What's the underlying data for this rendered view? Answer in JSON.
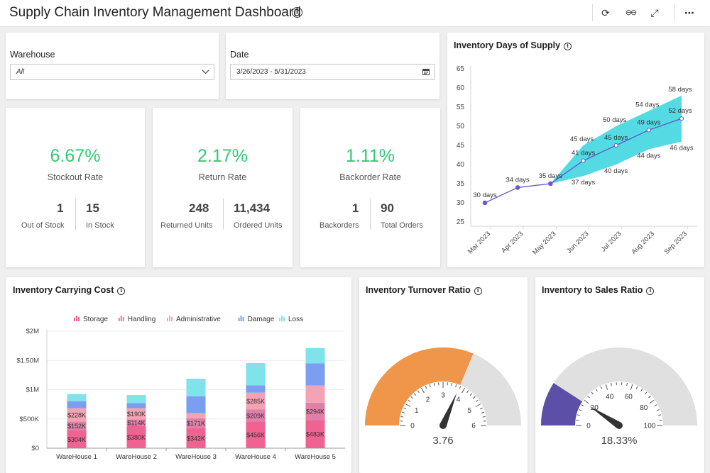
{
  "header": {
    "title": "Supply Chain Inventory Management Dashboard",
    "info_glyph": "i",
    "refresh_glyph": "⟳",
    "glasses_glyph": "⊖⊖",
    "expand_glyph": "⤢",
    "more_glyph": "⋯"
  },
  "filters": {
    "warehouse": {
      "label": "Warehouse",
      "value": "All"
    },
    "date": {
      "label": "Date",
      "value": "3/26/2023 - 5/31/2023"
    }
  },
  "kpis": [
    {
      "pct": "6.67%",
      "label": "Stockout Rate",
      "left_num": "1",
      "left_label": "Out of Stock",
      "right_num": "15",
      "right_label": "In Stock"
    },
    {
      "pct": "2.17%",
      "label": "Return Rate",
      "left_num": "248",
      "left_label": "Returned Units",
      "right_num": "11,434",
      "right_label": "Ordered Units"
    },
    {
      "pct": "1.11%",
      "label": "Backorder Rate",
      "left_num": "1",
      "left_label": "Backorders",
      "right_num": "90",
      "right_label": "Total Orders"
    }
  ],
  "colors": {
    "kpi_green": "#2ecc71",
    "line": "#6a5acd",
    "band": "#40d6e0",
    "gauge_orange": "#f0964a",
    "gauge_purple": "#5b4fa8",
    "gauge_gray": "#e0e0e0"
  },
  "chart_data": [
    {
      "type": "line",
      "title": "Inventory Days of Supply",
      "categories": [
        "Mar 2023",
        "Apr 2023",
        "May 2023",
        "Jun 2023",
        "Jul 2023",
        "Aug 2023",
        "Sep 2023"
      ],
      "y_ticks": [
        "25",
        "30",
        "35",
        "40",
        "45",
        "50",
        "55",
        "60",
        "65"
      ],
      "ylim": [
        25,
        65
      ],
      "series": [
        {
          "name": "Days of Supply",
          "values": [
            30,
            34,
            35,
            41,
            45,
            49,
            52
          ]
        }
      ],
      "band": {
        "start_index": 2,
        "upper": [
          35,
          45,
          50,
          54,
          58
        ],
        "lower": [
          35,
          37,
          40,
          44,
          46
        ]
      },
      "point_labels": [
        "30 days",
        "34 days",
        "35 days",
        "41 days",
        "45 days",
        "49 days",
        "52 days"
      ],
      "upper_labels": [
        "45 days",
        "50 days",
        "54 days",
        "58 days"
      ],
      "lower_labels": [
        "37 days",
        "40 days",
        "44 days",
        "46 days"
      ]
    },
    {
      "type": "bar",
      "stacked": true,
      "title": "Inventory Carrying Cost",
      "categories": [
        "WareHouse 1",
        "WareHouse 2",
        "WareHouse 3",
        "WareHouse 4",
        "WareHouse 5"
      ],
      "y_ticks": [
        "$0",
        "$500K",
        "$1M",
        "$1.50M",
        "$2M"
      ],
      "ylim": [
        0,
        2000
      ],
      "series": [
        {
          "name": "Storage",
          "color": "#f06292",
          "values": [
            304,
            380,
            342,
            456,
            483
          ]
        },
        {
          "name": "Handling",
          "color": "#e07fa8",
          "values": [
            152,
            114,
            171,
            209,
            294
          ]
        },
        {
          "name": "Administrative",
          "color": "#f4a3b4",
          "values": [
            228,
            190,
            85,
            285,
            294
          ]
        },
        {
          "name": "Damage",
          "color": "#7b9ef0",
          "values": [
            120,
            85,
            290,
            125,
            380
          ]
        },
        {
          "name": "Loss",
          "color": "#7ee3ea",
          "values": [
            120,
            140,
            300,
            380,
            260
          ]
        }
      ],
      "data_labels": [
        [
          "$304K",
          "$152K",
          "$228K"
        ],
        [
          "$380K",
          "$114K",
          "$190K"
        ],
        [
          "$342K",
          "$171K"
        ],
        [
          "$456K",
          "$209K",
          "$285K"
        ],
        [
          "$483K",
          "$294K"
        ]
      ]
    }
  ],
  "gauges": [
    {
      "title": "Inventory Turnover Ratio",
      "min": 0,
      "max": 6,
      "value": 3.76,
      "value_text": "3.76",
      "ticks": [
        "0",
        "1",
        "2",
        "3",
        "4",
        "5",
        "6"
      ]
    },
    {
      "title": "Inventory to Sales Ratio",
      "min": 0,
      "max": 100,
      "value": 18.33,
      "value_text": "18.33%",
      "ticks": [
        "0",
        "20",
        "40",
        "60",
        "80",
        "100"
      ]
    }
  ]
}
